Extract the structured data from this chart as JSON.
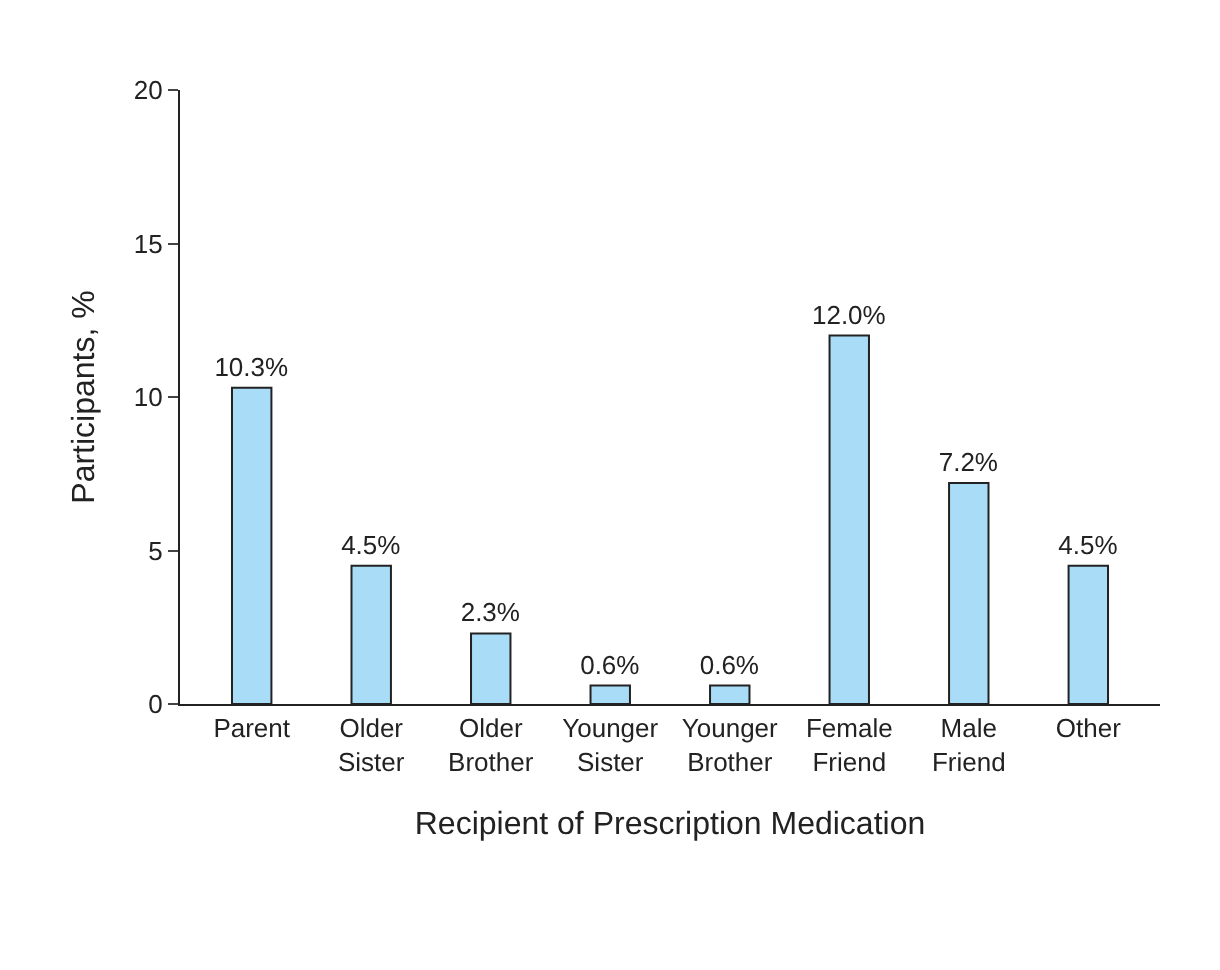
{
  "chart_data": {
    "type": "bar",
    "xlabel": "Recipient of Prescription Medication",
    "ylabel": "Participants, %",
    "categories": [
      "Parent",
      "Older Sister",
      "Older Brother",
      "Younger Sister",
      "Younger Brother",
      "Female Friend",
      "Male Friend",
      "Other"
    ],
    "values": [
      10.3,
      4.5,
      2.3,
      0.6,
      0.6,
      12.0,
      7.2,
      4.5
    ],
    "value_labels": [
      "10.3%",
      "4.5%",
      "2.3%",
      "0.6%",
      "0.6%",
      "12.0%",
      "7.2%",
      "4.5%"
    ],
    "color": "#a9dcf7",
    "ylim": [
      0,
      20
    ],
    "yticks": [
      0,
      5,
      10,
      15,
      20
    ],
    "legend": false
  }
}
